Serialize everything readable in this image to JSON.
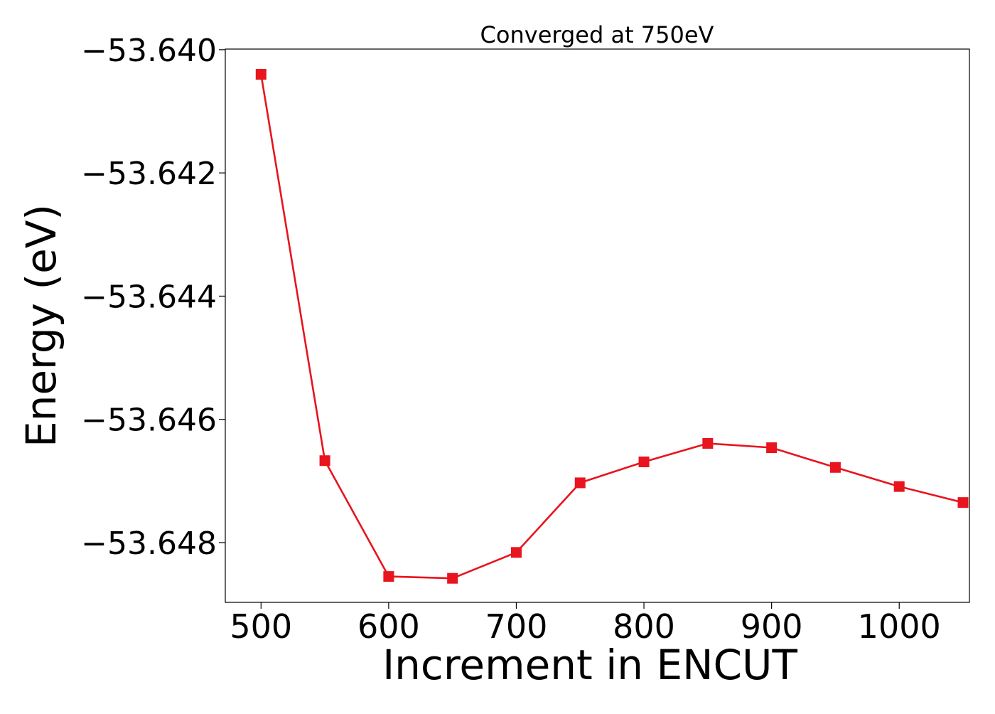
{
  "chart_data": {
    "type": "line",
    "title": "Converged at 750eV",
    "xlabel": "Increment in ENCUT",
    "ylabel": "Energy (eV)",
    "x": [
      500,
      550,
      600,
      650,
      700,
      750,
      800,
      850,
      900,
      950,
      1000,
      1050
    ],
    "series": [
      {
        "color": "#e8141e",
        "marker": "square",
        "values": [
          -53.6404,
          -53.64667,
          -53.64855,
          -53.64858,
          -53.64816,
          -53.64703,
          -53.64669,
          -53.64639,
          -53.64646,
          -53.64678,
          -53.64709,
          -53.64735
        ]
      }
    ],
    "xlim": [
      472,
      1055
    ],
    "ylim": [
      -53.64897,
      -53.63999
    ],
    "xticks": [
      500,
      600,
      700,
      800,
      900,
      1000
    ],
    "xtick_labels": [
      "500",
      "600",
      "700",
      "800",
      "900",
      "1000"
    ],
    "yticks": [
      -53.64,
      -53.642,
      -53.644,
      -53.646,
      -53.648
    ],
    "ytick_labels": [
      "−53.640",
      "−53.642",
      "−53.644",
      "−53.646",
      "−53.648"
    ],
    "grid": false,
    "legend": "none"
  }
}
